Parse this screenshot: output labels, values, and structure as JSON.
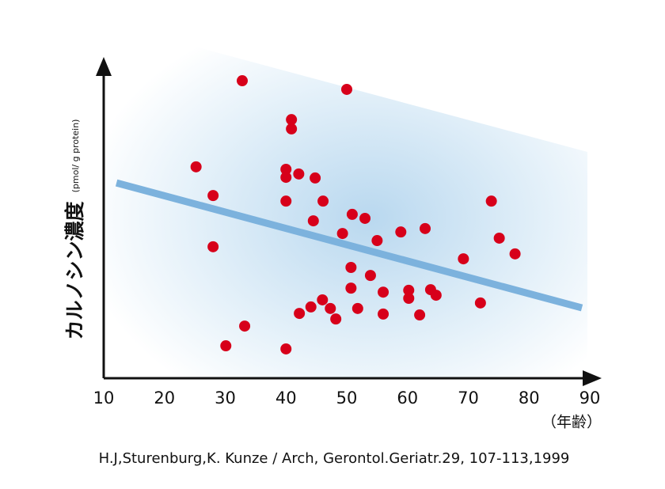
{
  "chart_data": {
    "type": "scatter",
    "y_label": "カルノシン濃度",
    "y_unit": "(pmol/ g protein)",
    "x_label": "（年齢）",
    "source": "H.J,Sturenburg,K. Kunze / Arch, Gerontol.Geriatr.29, 107-113,1999",
    "xlim": [
      10,
      90
    ],
    "ylim": [
      0,
      100
    ],
    "xticks": [
      10,
      20,
      30,
      40,
      50,
      60,
      70,
      80,
      90
    ],
    "color": "#d7001a",
    "x": [
      32.8,
      50.0,
      40.9,
      40.9,
      25.2,
      40.0,
      40.0,
      42.1,
      44.8,
      28.0,
      40.0,
      46.1,
      50.9,
      53.0,
      44.5,
      49.3,
      55.0,
      58.9,
      62.9,
      73.8,
      75.1,
      77.7,
      28.0,
      69.2,
      50.7,
      53.9,
      50.7,
      56.0,
      60.2,
      60.2,
      63.8,
      64.7,
      72.0,
      46.0,
      44.1,
      47.3,
      42.2,
      48.2,
      51.8,
      56.0,
      62.0,
      33.2,
      30.1,
      40.0
    ],
    "y": [
      96.4,
      93.6,
      83.8,
      80.8,
      68.5,
      67.7,
      65.1,
      66.2,
      64.9,
      59.2,
      57.4,
      57.4,
      53.1,
      51.8,
      51.0,
      46.9,
      44.6,
      47.4,
      48.5,
      57.4,
      45.4,
      40.3,
      42.6,
      38.7,
      35.9,
      33.3,
      29.2,
      27.9,
      28.5,
      25.9,
      28.7,
      26.9,
      24.4,
      25.4,
      23.1,
      22.6,
      21.0,
      19.2,
      22.6,
      20.8,
      20.5,
      16.9,
      10.5,
      9.5
    ],
    "trend": {
      "color": "#7cb2dd",
      "x": [
        12.1,
        88.7
      ],
      "y": [
        63.3,
        22.8
      ]
    }
  }
}
